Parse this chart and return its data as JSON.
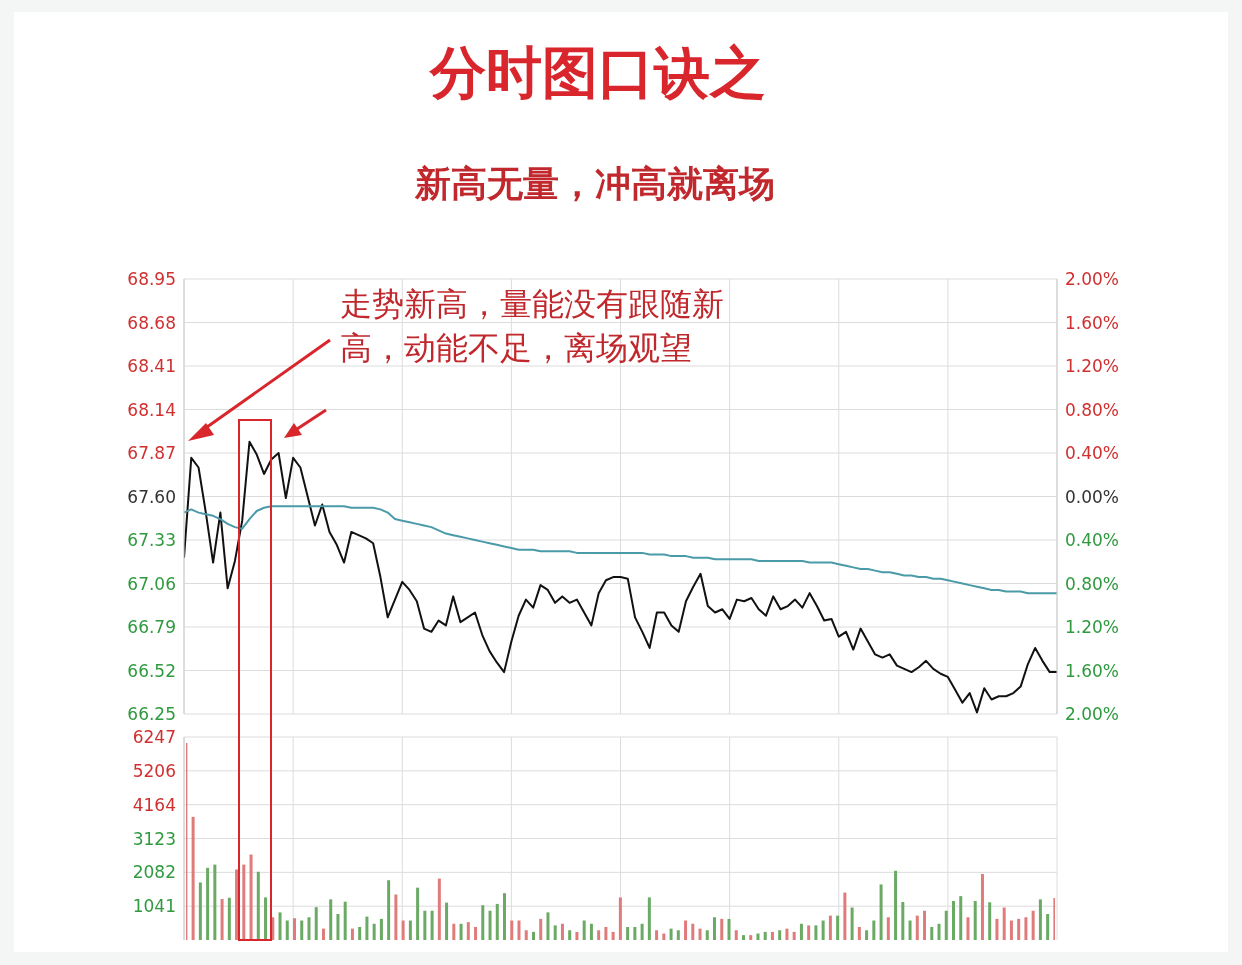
{
  "chart_data": [
    {
      "type": "line",
      "title": "分时图口诀之",
      "subtitle": "新高无量，冲高就离场",
      "annotations": [
        "走势新高，量能没有跟随新高，动能不足，离场观望"
      ],
      "categories": [
        null,
        null,
        null,
        null,
        null,
        null,
        null,
        null,
        null,
        null,
        null,
        null,
        null,
        null,
        null,
        null,
        null,
        null,
        null,
        null,
        null,
        null,
        null,
        null,
        null,
        null,
        null,
        null,
        null,
        null,
        null,
        null,
        null,
        null,
        null,
        null,
        null,
        null,
        null,
        null,
        null,
        null,
        null,
        null,
        null,
        null,
        null,
        null,
        null,
        null,
        null,
        null,
        null,
        null,
        null,
        null,
        null,
        null,
        null,
        null,
        null,
        null,
        null,
        null,
        null,
        null,
        null,
        null,
        null,
        null,
        null,
        null,
        null,
        null,
        null,
        null,
        null,
        null,
        null,
        null,
        null,
        null,
        null,
        null,
        null,
        null,
        null,
        null,
        null,
        null,
        null,
        null,
        null,
        null,
        null,
        null,
        null,
        null,
        null,
        null,
        null,
        null,
        null,
        null,
        null,
        null,
        null,
        null,
        null,
        null,
        null,
        null,
        null,
        null,
        null,
        null,
        null,
        null,
        null,
        null,
        null
      ],
      "series": [
        {
          "color": "#111111",
          "values": [
            67.22,
            67.84,
            67.78,
            67.5,
            67.19,
            67.5,
            67.03,
            67.2,
            67.45,
            67.94,
            67.86,
            67.74,
            67.83,
            67.87,
            67.59,
            67.84,
            67.78,
            67.6,
            67.42,
            67.55,
            67.38,
            67.3,
            67.19,
            67.38,
            67.36,
            67.34,
            67.31,
            67.1,
            66.85,
            66.96,
            67.07,
            67.02,
            66.95,
            66.78,
            66.76,
            66.83,
            66.8,
            66.98,
            66.82,
            66.85,
            66.88,
            66.74,
            66.64,
            66.57,
            66.51,
            66.7,
            66.86,
            66.96,
            66.91,
            67.05,
            67.02,
            66.94,
            66.98,
            66.94,
            66.96,
            66.88,
            66.8,
            67.0,
            67.08,
            67.1,
            67.1,
            67.09,
            66.85,
            66.76,
            66.66,
            66.88,
            66.88,
            66.8,
            66.76,
            66.95,
            67.04,
            67.12,
            66.92,
            66.88,
            66.9,
            66.84,
            66.96,
            66.95,
            66.97,
            66.9,
            66.86,
            66.98,
            66.9,
            66.92,
            66.96,
            66.91,
            67.0,
            66.92,
            66.83,
            66.84,
            66.73,
            66.76,
            66.65,
            66.78,
            66.7,
            66.62,
            66.6,
            66.62,
            66.55,
            66.53,
            66.51,
            66.54,
            66.58,
            66.53,
            66.5,
            66.48,
            66.4,
            66.32,
            66.38,
            66.26,
            66.41,
            66.34,
            66.36,
            66.36,
            66.38,
            66.42,
            66.56,
            66.66,
            66.58,
            66.51,
            66.51
          ]
        },
        {
          "color": "#4a9aa8",
          "values": [
            67.5,
            67.52,
            67.5,
            67.49,
            67.48,
            67.46,
            67.43,
            67.41,
            67.4,
            67.46,
            67.51,
            67.53,
            67.54,
            67.54,
            67.54,
            67.54,
            67.54,
            67.54,
            67.54,
            67.54,
            67.54,
            67.54,
            67.54,
            67.53,
            67.53,
            67.53,
            67.53,
            67.52,
            67.5,
            67.46,
            67.45,
            67.44,
            67.43,
            67.42,
            67.41,
            67.39,
            67.37,
            67.36,
            67.35,
            67.34,
            67.33,
            67.32,
            67.31,
            67.3,
            67.29,
            67.28,
            67.27,
            67.27,
            67.27,
            67.26,
            67.26,
            67.26,
            67.26,
            67.26,
            67.25,
            67.25,
            67.25,
            67.25,
            67.25,
            67.25,
            67.25,
            67.25,
            67.25,
            67.25,
            67.24,
            67.24,
            67.24,
            67.23,
            67.23,
            67.23,
            67.22,
            67.22,
            67.22,
            67.21,
            67.21,
            67.21,
            67.21,
            67.21,
            67.21,
            67.2,
            67.2,
            67.2,
            67.2,
            67.2,
            67.2,
            67.2,
            67.19,
            67.19,
            67.19,
            67.19,
            67.18,
            67.17,
            67.16,
            67.15,
            67.15,
            67.14,
            67.13,
            67.13,
            67.12,
            67.11,
            67.11,
            67.1,
            67.1,
            67.09,
            67.09,
            67.08,
            67.07,
            67.06,
            67.05,
            67.04,
            67.03,
            67.02,
            67.02,
            67.01,
            67.01,
            67.01,
            67.0,
            67.0,
            67.0,
            67.0,
            67.0
          ]
        }
      ],
      "ylim": [
        66.25,
        68.95
      ],
      "yticks": [
        66.25,
        66.52,
        66.79,
        67.06,
        67.33,
        {
          "value": 67.6,
          "label": "67.60"
        },
        67.87,
        68.14,
        68.41,
        68.68,
        68.95
      ],
      "y2lim": [
        -2,
        2
      ],
      "y2ticks": [
        {
          "value": -2,
          "label": "2.00%"
        },
        {
          "value": -1.6,
          "label": "1.60%"
        },
        {
          "value": -1.2,
          "label": "1.20%"
        },
        {
          "value": -0.8,
          "label": "0.80%"
        },
        {
          "value": -0.4,
          "label": "0.40%"
        },
        {
          "value": 0,
          "label": "0.00%"
        },
        {
          "value": 0.4,
          "label": "0.40%"
        },
        {
          "value": 0.8,
          "label": "0.80%"
        },
        {
          "value": 1.2,
          "label": "1.20%"
        },
        {
          "value": 1.6,
          "label": "1.60%"
        },
        {
          "value": 2,
          "label": "2.00%"
        }
      ],
      "grid": true,
      "marker": "none",
      "line_style": "solid"
    },
    {
      "type": "bar",
      "categories": [
        null,
        null,
        null,
        null,
        null,
        null,
        null,
        null,
        null,
        null,
        null,
        null,
        null,
        null,
        null,
        null,
        null,
        null,
        null,
        null,
        null,
        null,
        null,
        null,
        null,
        null,
        null,
        null,
        null,
        null,
        null,
        null,
        null,
        null,
        null,
        null,
        null,
        null,
        null,
        null,
        null,
        null,
        null,
        null,
        null,
        null,
        null,
        null,
        null,
        null,
        null,
        null,
        null,
        null,
        null,
        null,
        null,
        null,
        null,
        null,
        null,
        null,
        null,
        null,
        null,
        null,
        null,
        null,
        null,
        null,
        null,
        null,
        null,
        null,
        null,
        null,
        null,
        null,
        null,
        null,
        null,
        null,
        null,
        null,
        null,
        null,
        null,
        null,
        null,
        null,
        null,
        null,
        null,
        null,
        null,
        null,
        null,
        null,
        null,
        null,
        null,
        null,
        null,
        null,
        null,
        null,
        null,
        null,
        null,
        null,
        null,
        null,
        null,
        null,
        null,
        null,
        null,
        null,
        null,
        null,
        null
      ],
      "values": [
        6060,
        3790,
        1770,
        2220,
        2320,
        1260,
        1300,
        2170,
        2320,
        2630,
        2100,
        1310,
        700,
        850,
        600,
        670,
        600,
        700,
        1010,
        350,
        1250,
        800,
        1180,
        350,
        400,
        720,
        500,
        650,
        1840,
        1400,
        600,
        600,
        1610,
        900,
        900,
        1890,
        1150,
        500,
        500,
        550,
        400,
        1070,
        900,
        1110,
        1440,
        600,
        600,
        300,
        250,
        650,
        850,
        450,
        500,
        300,
        250,
        600,
        500,
        300,
        400,
        250,
        1310,
        400,
        400,
        500,
        1310,
        300,
        200,
        350,
        300,
        600,
        500,
        350,
        300,
        700,
        650,
        650,
        300,
        150,
        150,
        200,
        250,
        250,
        300,
        350,
        250,
        500,
        450,
        450,
        600,
        750,
        750,
        1460,
        1000,
        400,
        300,
        600,
        1710,
        700,
        2130,
        1170,
        600,
        750,
        900,
        400,
        500,
        900,
        1200,
        1350,
        700,
        1200,
        2030,
        1160,
        650,
        1000,
        600,
        650,
        700,
        900,
        1250,
        800,
        1290
      ],
      "colors": [
        "#e07b7b",
        "#e07b7b",
        "#6aaa64",
        "#6aaa64",
        "#6aaa64",
        "#e07b7b",
        "#6aaa64",
        "#e07b7b",
        "#e07b7b",
        "#e07b7b",
        "#6aaa64",
        "#6aaa64",
        "#e07b7b",
        "#6aaa64",
        "#6aaa64",
        "#e07b7b",
        "#6aaa64",
        "#6aaa64",
        "#6aaa64",
        "#e07b7b",
        "#6aaa64",
        "#6aaa64",
        "#6aaa64",
        "#e07b7b",
        "#6aaa64",
        "#6aaa64",
        "#6aaa64",
        "#6aaa64",
        "#6aaa64",
        "#e07b7b",
        "#e07b7b",
        "#6aaa64",
        "#6aaa64",
        "#6aaa64",
        "#6aaa64",
        "#e07b7b",
        "#6aaa64",
        "#e07b7b",
        "#6aaa64",
        "#e07b7b",
        "#e07b7b",
        "#6aaa64",
        "#6aaa64",
        "#6aaa64",
        "#6aaa64",
        "#e07b7b",
        "#e07b7b",
        "#e07b7b",
        "#6aaa64",
        "#e07b7b",
        "#6aaa64",
        "#6aaa64",
        "#e07b7b",
        "#6aaa64",
        "#e07b7b",
        "#6aaa64",
        "#6aaa64",
        "#e07b7b",
        "#e07b7b",
        "#e07b7b",
        "#e07b7b",
        "#6aaa64",
        "#6aaa64",
        "#6aaa64",
        "#6aaa64",
        "#e07b7b",
        "#e07b7b",
        "#6aaa64",
        "#6aaa64",
        "#e07b7b",
        "#e07b7b",
        "#e07b7b",
        "#6aaa64",
        "#6aaa64",
        "#e07b7b",
        "#6aaa64",
        "#e07b7b",
        "#6aaa64",
        "#e07b7b",
        "#6aaa64",
        "#6aaa64",
        "#e07b7b",
        "#6aaa64",
        "#e07b7b",
        "#e07b7b",
        "#6aaa64",
        "#e07b7b",
        "#6aaa64",
        "#6aaa64",
        "#e07b7b",
        "#6aaa64",
        "#e07b7b",
        "#6aaa64",
        "#e07b7b",
        "#6aaa64",
        "#6aaa64",
        "#6aaa64",
        "#e07b7b",
        "#6aaa64",
        "#6aaa64",
        "#6aaa64",
        "#e07b7b",
        "#e07b7b",
        "#6aaa64",
        "#6aaa64",
        "#6aaa64",
        "#6aaa64",
        "#6aaa64",
        "#e07b7b",
        "#6aaa64",
        "#e07b7b",
        "#6aaa64",
        "#e07b7b",
        "#e07b7b",
        "#e07b7b",
        "#e07b7b",
        "#e07b7b",
        "#e07b7b",
        "#6aaa64",
        "#6aaa64",
        "#e07b7b"
      ],
      "ylim": [
        0,
        6247
      ],
      "yticks": [
        1041,
        2082,
        3123,
        4164,
        5206,
        6247
      ],
      "grid": true
    }
  ]
}
